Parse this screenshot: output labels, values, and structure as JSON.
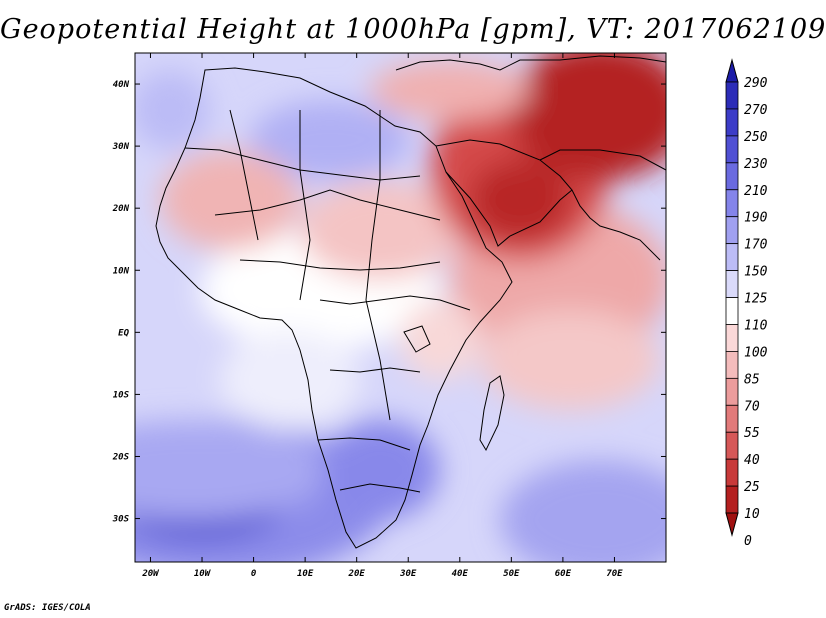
{
  "title": "Geopotential Height at 1000hPa [gpm], VT: 2017062109",
  "credit": "GrADS: IGES/COLA",
  "map": {
    "lon_range": [
      -23,
      80
    ],
    "lat_range": [
      -37,
      45
    ],
    "lat_ticks": [
      "40N",
      "30N",
      "20N",
      "10N",
      "EQ",
      "10S",
      "20S",
      "30S"
    ],
    "lon_ticks": [
      "20W",
      "10W",
      "0",
      "10E",
      "20E",
      "30E",
      "40E",
      "50E",
      "60E",
      "70E"
    ]
  },
  "colorbar": {
    "levels": [
      "290",
      "270",
      "250",
      "230",
      "210",
      "190",
      "170",
      "150",
      "125",
      "110",
      "100",
      "85",
      "70",
      "55",
      "40",
      "25",
      "10",
      "0"
    ],
    "colors": [
      "#1c1ca8",
      "#2c2cb8",
      "#3c3cc8",
      "#5050d4",
      "#6a6ae0",
      "#8484ea",
      "#a0a0f0",
      "#bcbcf6",
      "#dadafa",
      "#ffffff",
      "#fbd8d8",
      "#f4bcbc",
      "#ec9c9c",
      "#e27a7a",
      "#d65858",
      "#c83a3a",
      "#b42020",
      "#a01010"
    ]
  },
  "chart_data": {
    "type": "heatmap",
    "title": "Geopotential Height at 1000hPa [gpm], VT: 2017062109",
    "xlabel": "",
    "ylabel": "",
    "x_ticks": [
      "20W",
      "10W",
      "0",
      "10E",
      "20E",
      "30E",
      "40E",
      "50E",
      "60E",
      "70E"
    ],
    "y_ticks": [
      "40N",
      "30N",
      "20N",
      "10N",
      "EQ",
      "10S",
      "20S",
      "30S"
    ],
    "levels": [
      0,
      10,
      25,
      40,
      55,
      70,
      85,
      100,
      110,
      125,
      150,
      170,
      190,
      210,
      230,
      250,
      270,
      290
    ]
  }
}
